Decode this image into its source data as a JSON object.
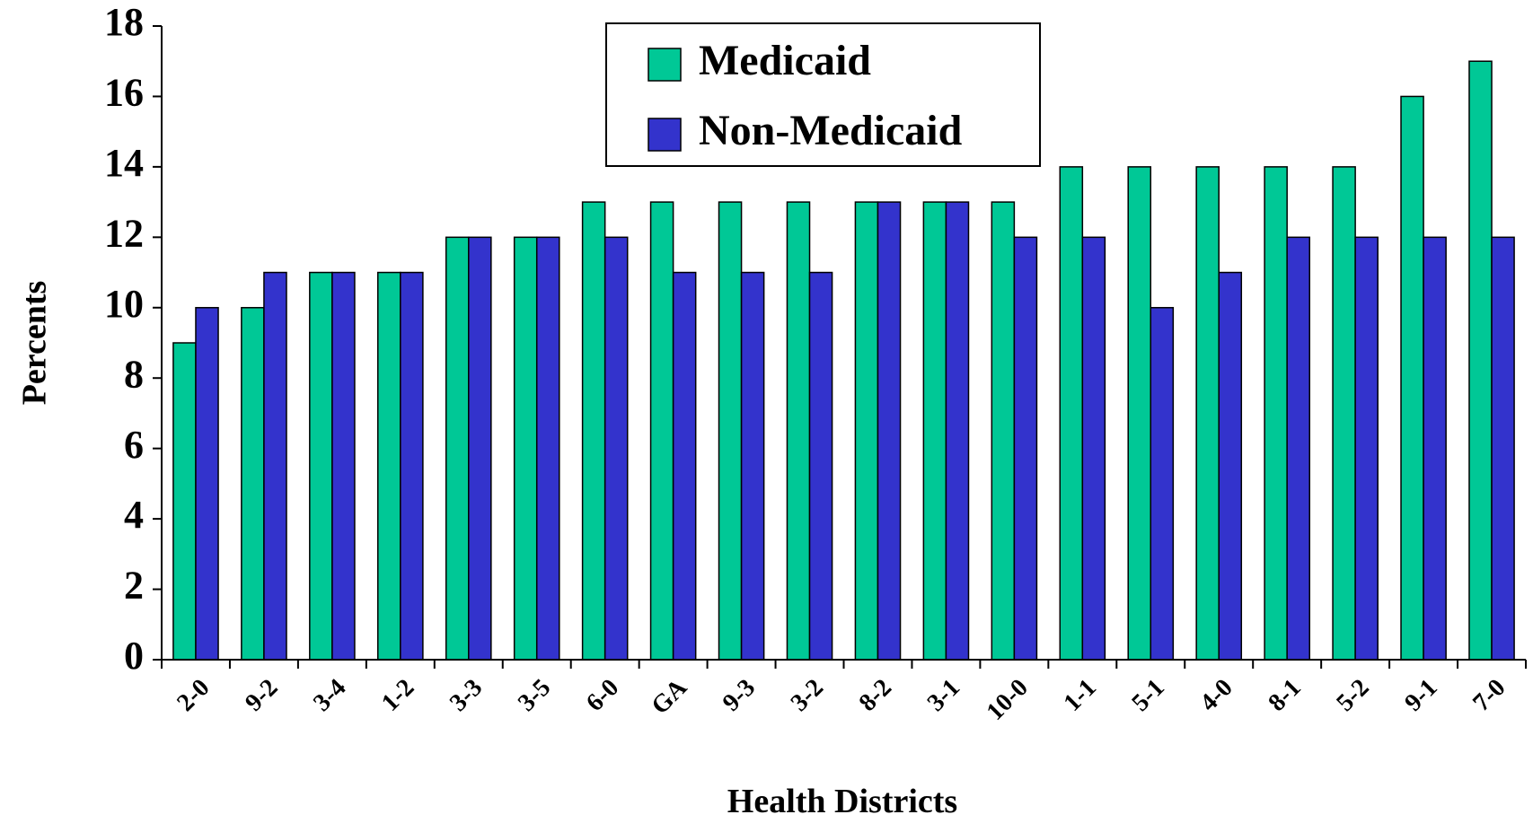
{
  "chart_data": {
    "type": "bar",
    "x_label": "Health Districts",
    "y_label": "Percents",
    "categories": [
      "2-0",
      "9-2",
      "3-4",
      "1-2",
      "3-3",
      "3-5",
      "6-0",
      "GA",
      "9-3",
      "3-2",
      "8-2",
      "3-1",
      "10-0",
      "1-1",
      "5-1",
      "4-0",
      "8-1",
      "5-2",
      "9-1",
      "7-0"
    ],
    "series": [
      {
        "name": "Medicaid",
        "color": "#00c896",
        "values": [
          9,
          10,
          11,
          11,
          12,
          12,
          13,
          13,
          13,
          13,
          13,
          13,
          13,
          14,
          14,
          14,
          14,
          14,
          16,
          17
        ]
      },
      {
        "name": "Non-Medicaid",
        "color": "#3333cc",
        "values": [
          10,
          11,
          11,
          11,
          12,
          12,
          12,
          11,
          11,
          11,
          13,
          13,
          12,
          12,
          10,
          11,
          12,
          12,
          12,
          12
        ]
      }
    ],
    "ylim": [
      0,
      18
    ],
    "yticks": [
      0,
      2,
      4,
      6,
      8,
      10,
      12,
      14,
      16,
      18
    ],
    "grid": false,
    "legend": "top"
  }
}
